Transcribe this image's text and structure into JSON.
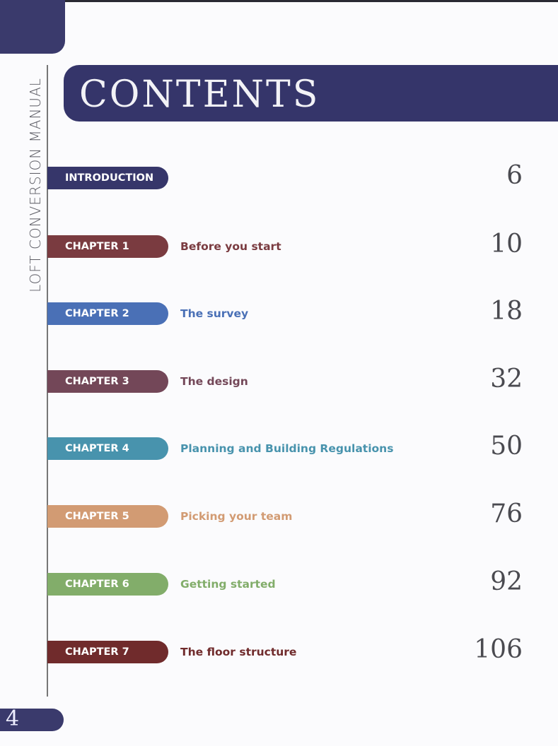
{
  "header": {
    "title": "CONTENTS",
    "spine_text": "LOFT CONVERSION MANUAL"
  },
  "entries": [
    {
      "label": "INTRODUCTION",
      "title": "",
      "page": "6",
      "color": "#36366a",
      "title_color": "#36366a"
    },
    {
      "label": "CHAPTER 1",
      "title": "Before  you start",
      "page": "10",
      "color": "#7a3b40",
      "title_color": "#7a3b40"
    },
    {
      "label": "CHAPTER 2",
      "title": "The survey",
      "page": "18",
      "color": "#4a70b6",
      "title_color": "#4a70b6"
    },
    {
      "label": "CHAPTER 3",
      "title": "The design",
      "page": "32",
      "color": "#734758",
      "title_color": "#734758"
    },
    {
      "label": "CHAPTER 4",
      "title": "Planning and Building Regulations",
      "page": "50",
      "color": "#4893ad",
      "title_color": "#4893ad"
    },
    {
      "label": "CHAPTER 5",
      "title": "Picking your team",
      "page": "76",
      "color": "#d29b73",
      "title_color": "#d29b73"
    },
    {
      "label": "CHAPTER 6",
      "title": "Getting started",
      "page": "92",
      "color": "#82ad6a",
      "title_color": "#82ad6a"
    },
    {
      "label": "CHAPTER 7",
      "title": "The floor structure",
      "page": "106",
      "color": "#702b2c",
      "title_color": "#702b2c"
    }
  ],
  "footer": {
    "page_number": "4"
  }
}
